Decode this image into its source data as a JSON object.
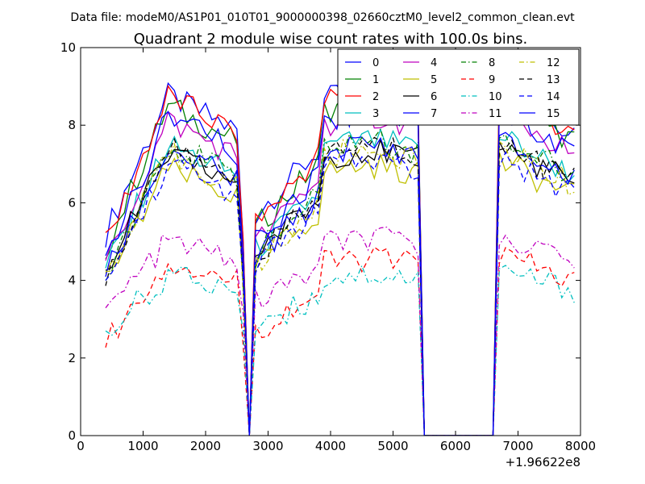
{
  "chart_data": {
    "type": "line",
    "suptitle": "Data file: modeM0/AS1P01_010T01_9000000398_02660cztM0_level2_common_clean.evt",
    "title": "Quadrant 2 module wise count rates with 100.0s bins.",
    "xlabel": "",
    "ylabel": "",
    "x_offset_label": "+1.96622e8",
    "xlim": [
      0,
      8000
    ],
    "ylim": [
      0,
      10
    ],
    "xticks": [
      0,
      1000,
      2000,
      3000,
      4000,
      5000,
      6000,
      7000,
      8000
    ],
    "yticks": [
      0,
      2,
      4,
      6,
      8,
      10
    ],
    "grid": false,
    "legend": {
      "position": "top-right",
      "columns": 4
    },
    "x": [
      400,
      500,
      600,
      700,
      800,
      900,
      1000,
      1100,
      1200,
      1300,
      1400,
      1500,
      1600,
      1700,
      1800,
      1900,
      2000,
      2100,
      2200,
      2300,
      2400,
      2500,
      2600,
      2700,
      2800,
      2900,
      3000,
      3100,
      3200,
      3300,
      3400,
      3500,
      3600,
      3700,
      3800,
      3900,
      4000,
      4100,
      4200,
      4300,
      4400,
      4500,
      4600,
      4700,
      4800,
      4900,
      5000,
      5100,
      5200,
      5300,
      5400,
      5500,
      5600,
      5700,
      5800,
      5900,
      6000,
      6100,
      6200,
      6300,
      6400,
      6500,
      6600,
      6700,
      6800,
      6900,
      7000,
      7100,
      7200,
      7300,
      7400,
      7500,
      7600,
      7700,
      7800,
      7900
    ],
    "series": [
      {
        "name": "0",
        "color": "#0000ff",
        "dash": "solid",
        "base": 5.2,
        "level": 7.0,
        "step": 0
      },
      {
        "name": "1",
        "color": "#008000",
        "dash": "solid",
        "base": 4.8,
        "level": 6.8,
        "step": 0
      },
      {
        "name": "2",
        "color": "#ff0000",
        "dash": "solid",
        "base": 4.9,
        "level": 7.0,
        "step": 0
      },
      {
        "name": "3",
        "color": "#00bfbf",
        "dash": "solid",
        "base": 4.3,
        "level": 6.0,
        "step": 0
      },
      {
        "name": "4",
        "color": "#bf00bf",
        "dash": "solid",
        "base": 4.4,
        "level": 6.5,
        "step": 0
      },
      {
        "name": "5",
        "color": "#bfbf00",
        "dash": "solid",
        "base": 4.0,
        "level": 5.5,
        "step": 0
      },
      {
        "name": "6",
        "color": "#000000",
        "dash": "solid",
        "base": 4.3,
        "level": 5.8,
        "step": 0
      },
      {
        "name": "7",
        "color": "#0000ff",
        "dash": "solid",
        "base": 4.1,
        "level": 5.9,
        "step": 0
      },
      {
        "name": "8",
        "color": "#008000",
        "dash": "dashdot",
        "base": 4.2,
        "level": 6.0,
        "step": 0
      },
      {
        "name": "9",
        "color": "#ff0000",
        "dash": "dashed",
        "base": 2.4,
        "level": 3.6,
        "step": 0
      },
      {
        "name": "10",
        "color": "#00bfbf",
        "dash": "dashdot",
        "base": 2.7,
        "level": 3.3,
        "step": 0
      },
      {
        "name": "11",
        "color": "#bf00bf",
        "dash": "dashdot",
        "base": 3.2,
        "level": 4.0,
        "step": 0
      },
      {
        "name": "12",
        "color": "#bfbf00",
        "dash": "dashdot",
        "base": 3.9,
        "level": 5.8,
        "step": 0
      },
      {
        "name": "13",
        "color": "#000000",
        "dash": "dashed",
        "base": 4.1,
        "level": 5.9,
        "step": 0
      },
      {
        "name": "14",
        "color": "#0000ff",
        "dash": "dashed",
        "base": 4.0,
        "level": 5.6,
        "step": 0
      },
      {
        "name": "15",
        "color": "#0000ff",
        "dash": "solid",
        "base": 4.5,
        "level": 6.6,
        "step": 0
      }
    ]
  }
}
